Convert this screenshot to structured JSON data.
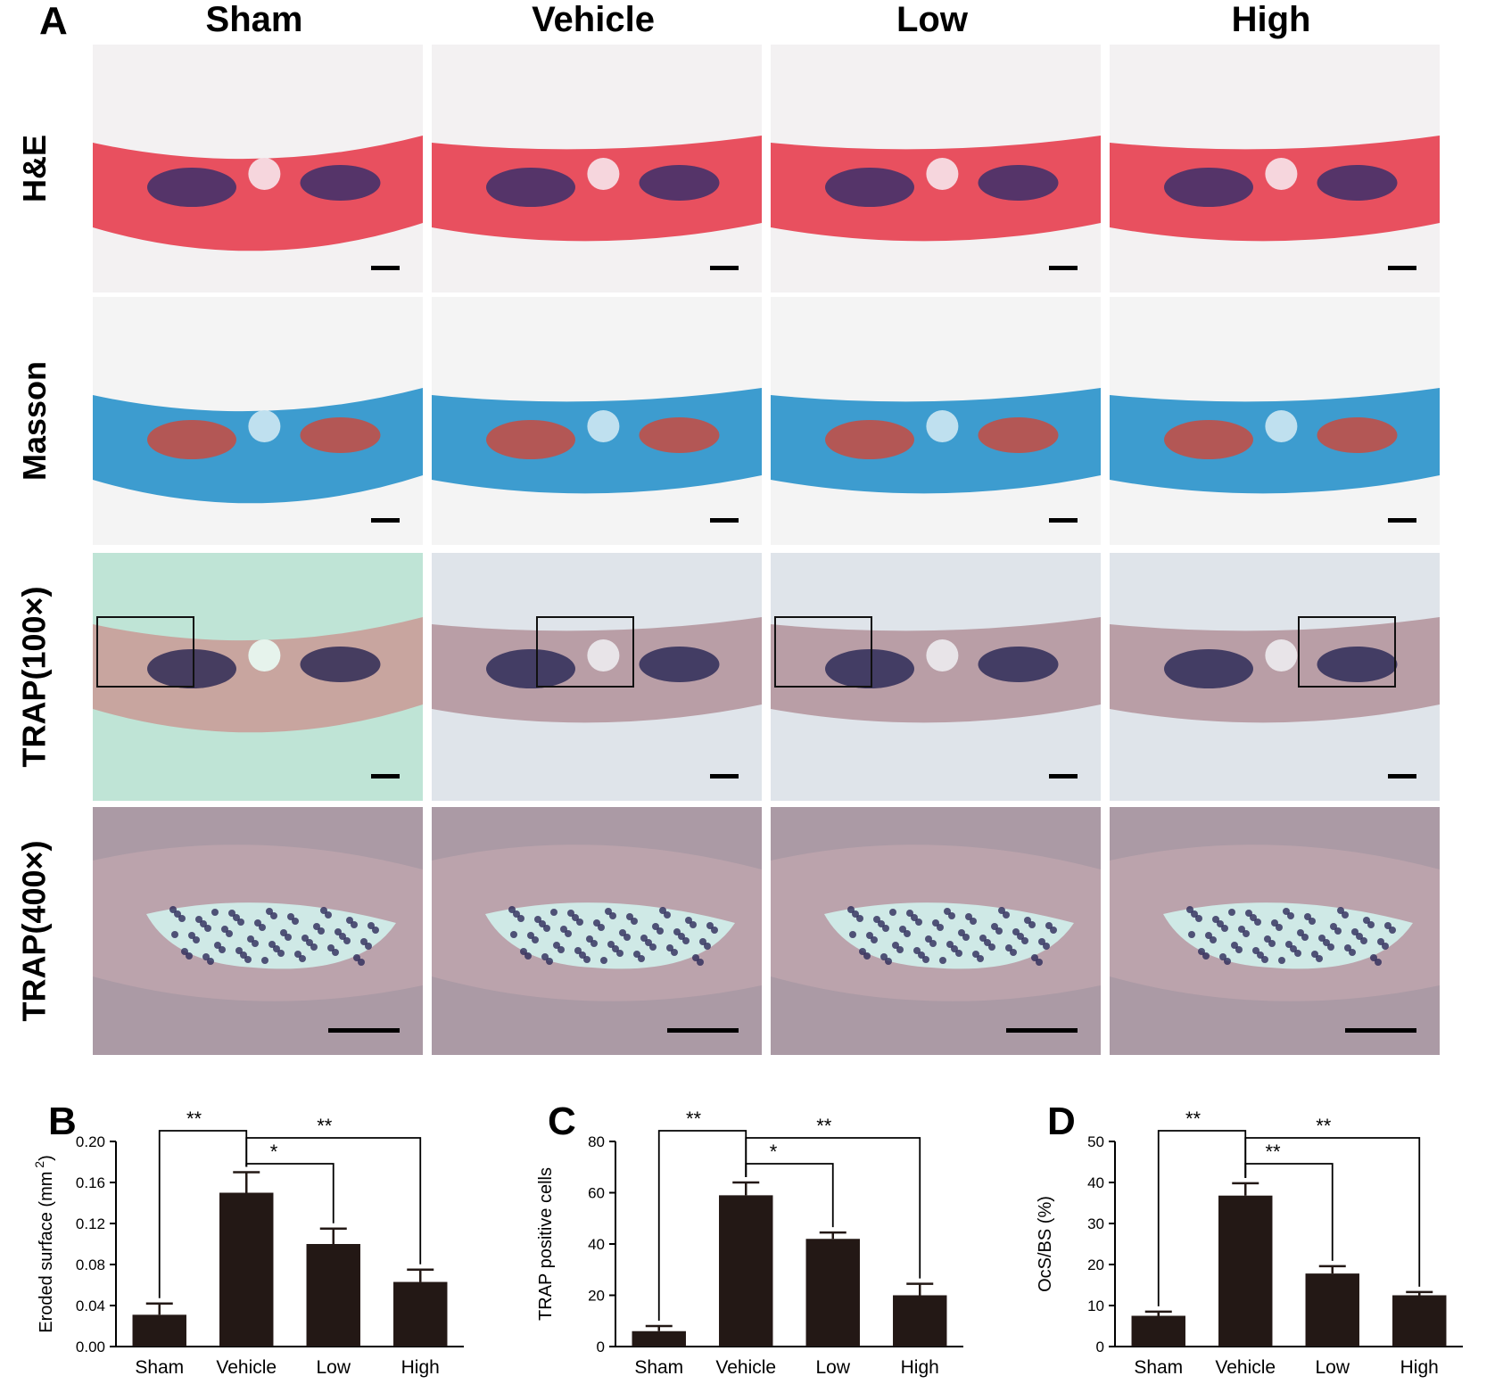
{
  "figure": {
    "panel_a_letter": "A",
    "columns": [
      "Sham",
      "Vehicle",
      "Low",
      "High"
    ],
    "rows": [
      "H&E",
      "Masson",
      "TRAP(100×)",
      "TRAP(400×)"
    ]
  },
  "chart_data": [
    {
      "panel": "B",
      "type": "bar",
      "categories": [
        "Sham",
        "Vehicle",
        "Low",
        "High"
      ],
      "values": [
        0.031,
        0.15,
        0.1,
        0.063
      ],
      "errors": [
        0.011,
        0.02,
        0.015,
        0.012
      ],
      "ylabel": "Eroded surface (mm",
      "ylabel_sup": "2",
      "ylabel_end": ")",
      "ylim": [
        0,
        0.2
      ],
      "yticks": [
        "0.00",
        "0.04",
        "0.08",
        "0.12",
        "0.16",
        "0.20"
      ],
      "significance": [
        {
          "from": 0,
          "to": 1,
          "label": "**"
        },
        {
          "from": 1,
          "to": 2,
          "label": "*"
        },
        {
          "from": 1,
          "to": 3,
          "label": "**"
        }
      ],
      "colors": {
        "bar": "#231815"
      }
    },
    {
      "panel": "C",
      "type": "bar",
      "categories": [
        "Sham",
        "Vehicle",
        "Low",
        "High"
      ],
      "values": [
        6,
        59,
        42,
        20
      ],
      "errors": [
        2,
        5,
        2.5,
        4.5
      ],
      "ylabel": "TRAP positive cells",
      "ylim": [
        0,
        80
      ],
      "yticks": [
        "0",
        "20",
        "40",
        "60",
        "80"
      ],
      "significance": [
        {
          "from": 0,
          "to": 1,
          "label": "**"
        },
        {
          "from": 1,
          "to": 2,
          "label": "*"
        },
        {
          "from": 1,
          "to": 3,
          "label": "**"
        }
      ],
      "colors": {
        "bar": "#231815"
      }
    },
    {
      "panel": "D",
      "type": "bar",
      "categories": [
        "Sham",
        "Vehicle",
        "Low",
        "High"
      ],
      "values": [
        7.5,
        36.8,
        17.8,
        12.5
      ],
      "errors": [
        1.0,
        3.0,
        1.8,
        0.8
      ],
      "ylabel": "OcS/BS (%)",
      "ylim": [
        0,
        50
      ],
      "yticks": [
        "0",
        "10",
        "20",
        "30",
        "40",
        "50"
      ],
      "significance": [
        {
          "from": 0,
          "to": 1,
          "label": "**"
        },
        {
          "from": 1,
          "to": 2,
          "label": "**"
        },
        {
          "from": 1,
          "to": 3,
          "label": "**"
        }
      ],
      "colors": {
        "bar": "#231815"
      }
    }
  ]
}
